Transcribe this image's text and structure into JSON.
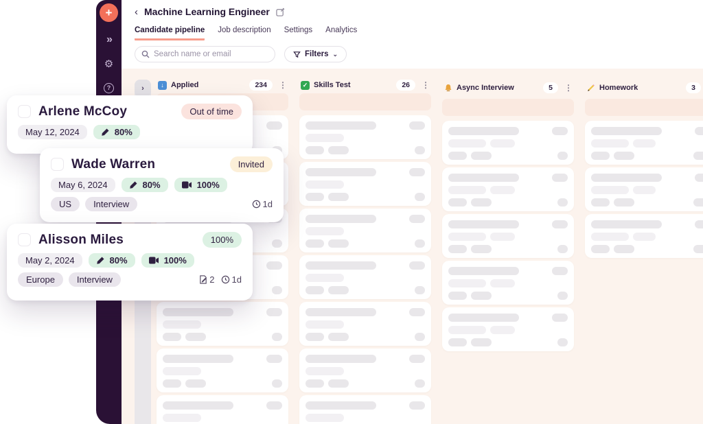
{
  "colors": {
    "accent": "#F3705A",
    "sidebar_bg": "#2A1135",
    "tab_underline": "#F79C8B",
    "board_bg": "#FCF3ED",
    "drop_zone": "#FAE9E0",
    "badge_danger_bg": "#FBE3DE",
    "badge_warning_bg": "#FCEFD8",
    "badge_success_bg": "#DCF1E3"
  },
  "sidebar": {
    "add_label": "+",
    "expand_label": "»",
    "settings_label": "⚙",
    "help_label": "?"
  },
  "header": {
    "back": "‹",
    "title": "Machine Learning Engineer"
  },
  "tabs": [
    {
      "label": "Candidate pipeline",
      "active": true
    },
    {
      "label": "Job description",
      "active": false
    },
    {
      "label": "Settings",
      "active": false
    },
    {
      "label": "Analytics",
      "active": false
    }
  ],
  "toolbar": {
    "search_placeholder": "Search name or email",
    "filters_label": "Filters",
    "filters_chevron": "⌄"
  },
  "board": {
    "collapse_chevron": "›",
    "columns": [
      {
        "label": "Applied",
        "count": "234",
        "icon": "inbox-icon",
        "icon_glyph": "↓",
        "menu": "⋮",
        "skeleton_cards": 7,
        "variant": 1
      },
      {
        "label": "Skills Test",
        "count": "26",
        "icon": "check-icon",
        "icon_glyph": "✓",
        "menu": "⋮",
        "skeleton_cards": 7,
        "variant": 1
      },
      {
        "label": "Async Interview",
        "count": "5",
        "icon": "bell-icon",
        "icon_glyph": "",
        "menu": "⋮",
        "skeleton_cards": 5,
        "variant": 2
      },
      {
        "label": "Homework",
        "count": "3",
        "icon": "pencil-icon",
        "icon_glyph": "",
        "menu": "⋮",
        "skeleton_cards": 3,
        "variant": 3
      }
    ]
  },
  "cards": [
    {
      "name": "Arlene McCoy",
      "badge": "Out of time",
      "badge_type": "danger",
      "date": "May 12, 2024",
      "score": "80%"
    },
    {
      "name": "Wade Warren",
      "badge": "Invited",
      "badge_type": "warning",
      "date": "May 6, 2024",
      "score": "80%",
      "video_score": "100%",
      "tags": [
        "US",
        "Interview"
      ],
      "duration": "1d"
    },
    {
      "name": "Alisson Miles",
      "badge": "100%",
      "badge_type": "success",
      "date": "May 2, 2024",
      "score": "80%",
      "video_score": "100%",
      "tags": [
        "Europe",
        "Interview"
      ],
      "notes_count": "2",
      "duration": "1d"
    }
  ]
}
